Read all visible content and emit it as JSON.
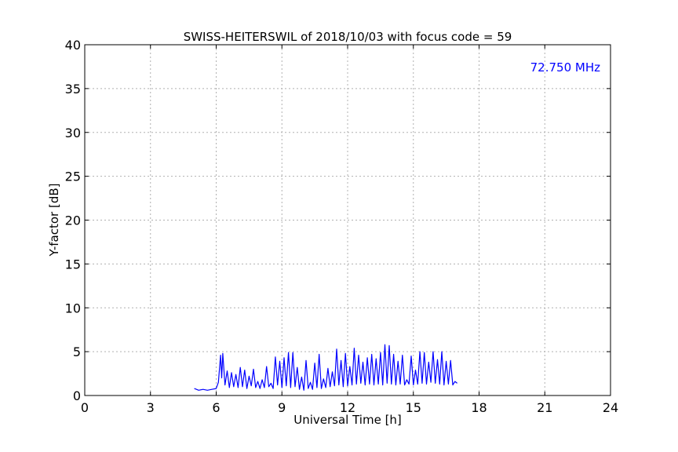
{
  "chart_data": {
    "type": "line",
    "title": "SWISS-HEITERSWIL of 2018/10/03 with focus code = 59",
    "xlabel": "Universal Time [h]",
    "ylabel": "Y-factor [dB]",
    "annotation": "72.750 MHz",
    "color": "#0000ff",
    "xlim": [
      0,
      24
    ],
    "ylim": [
      0,
      40
    ],
    "xticks": [
      0,
      3,
      6,
      9,
      12,
      15,
      18,
      21,
      24
    ],
    "yticks": [
      0,
      5,
      10,
      15,
      20,
      25,
      30,
      35,
      40
    ],
    "grid": true,
    "series": [
      {
        "name": "",
        "x": [
          5.0,
          5.2,
          5.4,
          5.6,
          5.8,
          6.0,
          6.1,
          6.2,
          6.25,
          6.3,
          6.4,
          6.5,
          6.6,
          6.7,
          6.8,
          6.9,
          7.0,
          7.1,
          7.2,
          7.3,
          7.4,
          7.5,
          7.6,
          7.7,
          7.8,
          7.9,
          8.0,
          8.1,
          8.2,
          8.3,
          8.4,
          8.5,
          8.6,
          8.7,
          8.8,
          8.9,
          9.0,
          9.1,
          9.2,
          9.3,
          9.4,
          9.5,
          9.6,
          9.7,
          9.8,
          9.9,
          10.0,
          10.1,
          10.2,
          10.3,
          10.4,
          10.5,
          10.6,
          10.7,
          10.8,
          10.9,
          11.0,
          11.1,
          11.2,
          11.3,
          11.4,
          11.5,
          11.6,
          11.7,
          11.8,
          11.9,
          12.0,
          12.1,
          12.2,
          12.3,
          12.4,
          12.5,
          12.6,
          12.7,
          12.8,
          12.9,
          13.0,
          13.1,
          13.2,
          13.3,
          13.4,
          13.5,
          13.6,
          13.7,
          13.8,
          13.9,
          14.0,
          14.1,
          14.2,
          14.3,
          14.4,
          14.5,
          14.6,
          14.7,
          14.8,
          14.9,
          15.0,
          15.1,
          15.2,
          15.3,
          15.4,
          15.5,
          15.6,
          15.7,
          15.8,
          15.9,
          16.0,
          16.1,
          16.2,
          16.3,
          16.4,
          16.5,
          16.6,
          16.7,
          16.8,
          16.9,
          17.0
        ],
        "y": [
          0.8,
          0.6,
          0.7,
          0.6,
          0.7,
          0.8,
          1.5,
          4.6,
          2.0,
          4.8,
          1.2,
          2.8,
          0.9,
          2.6,
          1.0,
          2.4,
          0.9,
          3.2,
          1.0,
          2.9,
          0.8,
          2.2,
          1.1,
          3.0,
          0.9,
          1.6,
          0.8,
          1.8,
          0.9,
          3.3,
          1.0,
          1.4,
          0.8,
          4.4,
          1.2,
          3.9,
          0.9,
          4.3,
          1.1,
          4.9,
          0.9,
          4.9,
          1.0,
          3.2,
          0.7,
          2.1,
          0.6,
          4.0,
          0.8,
          1.5,
          0.7,
          3.7,
          0.9,
          4.7,
          0.8,
          1.9,
          0.9,
          3.1,
          1.0,
          2.7,
          1.1,
          5.3,
          1.2,
          4.0,
          1.0,
          4.8,
          1.1,
          3.3,
          1.2,
          5.4,
          1.3,
          4.6,
          1.4,
          3.8,
          1.2,
          4.3,
          1.3,
          4.7,
          1.2,
          4.2,
          1.3,
          4.9,
          1.2,
          5.8,
          1.4,
          5.7,
          1.3,
          4.7,
          1.2,
          3.9,
          1.3,
          4.6,
          1.2,
          1.8,
          1.3,
          4.5,
          1.2,
          2.9,
          1.3,
          5.0,
          1.4,
          4.9,
          1.3,
          3.8,
          1.5,
          5.0,
          1.4,
          4.1,
          1.3,
          5.0,
          1.2,
          3.9,
          1.3,
          4.0,
          1.2,
          1.6,
          1.4
        ]
      }
    ]
  }
}
